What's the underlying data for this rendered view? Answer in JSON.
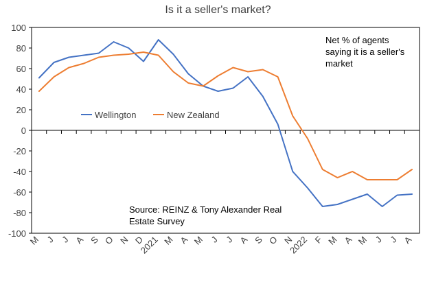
{
  "chart_data": {
    "type": "line",
    "title": "Is it a seller's market?",
    "annotation_lines": [
      "Net % of agents",
      "saying it is a seller's",
      "market"
    ],
    "source_lines": [
      "Source: REINZ & Tony Alexander Real",
      "Estate Survey"
    ],
    "x": [
      "M",
      "J",
      "J",
      "A",
      "S",
      "O",
      "N",
      "D",
      "2021",
      "M",
      "A",
      "M",
      "J",
      "J",
      "A",
      "S",
      "O",
      "N",
      "2022",
      "F",
      "M",
      "A",
      "M",
      "J",
      "J",
      "A"
    ],
    "ylim": [
      -100,
      100
    ],
    "yticks": [
      100,
      80,
      60,
      40,
      20,
      0,
      -20,
      -40,
      -60,
      -80,
      -100
    ],
    "legend_position": "middle-left",
    "series": [
      {
        "name": "Wellington",
        "color": "#4472C4",
        "values": [
          51,
          66,
          71,
          73,
          75,
          86,
          80,
          67,
          88,
          74,
          55,
          43,
          38,
          41,
          52,
          33,
          6,
          -40,
          -56,
          -74,
          -72,
          -67,
          -62,
          -74,
          -63,
          -62
        ]
      },
      {
        "name": "New Zealand",
        "color": "#ED7D31",
        "values": [
          38,
          52,
          61,
          65,
          71,
          73,
          74,
          76,
          73,
          57,
          46,
          43,
          53,
          61,
          57,
          59,
          52,
          14,
          -8,
          -38,
          -46,
          -40,
          -48,
          -48,
          -48,
          -38
        ]
      }
    ]
  }
}
